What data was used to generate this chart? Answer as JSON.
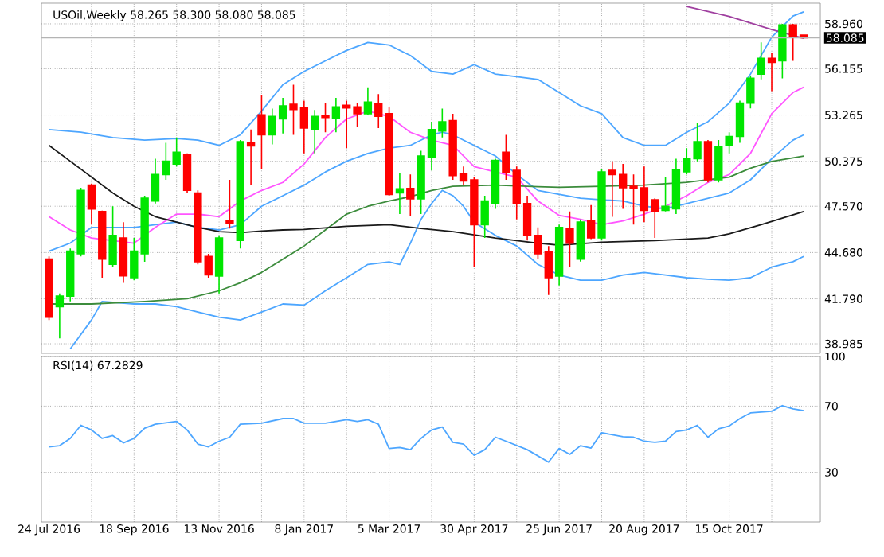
{
  "chart_data": [
    {
      "type": "candlestick",
      "title": "USOil,Weekly  58.265 58.300 58.080 58.085",
      "x": [
        "2016-07-24",
        "2016-07-31",
        "2016-08-07",
        "2016-08-14",
        "2016-08-21",
        "2016-08-28",
        "2016-09-04",
        "2016-09-11",
        "2016-09-18",
        "2016-09-25",
        "2016-10-02",
        "2016-10-09",
        "2016-10-16",
        "2016-10-23",
        "2016-10-30",
        "2016-11-06",
        "2016-11-13",
        "2016-11-20",
        "2016-11-27",
        "2016-12-04",
        "2016-12-11",
        "2016-12-18",
        "2016-12-25",
        "2017-01-01",
        "2017-01-08",
        "2017-01-15",
        "2017-01-22",
        "2017-01-29",
        "2017-02-05",
        "2017-02-12",
        "2017-02-19",
        "2017-02-26",
        "2017-03-05",
        "2017-03-12",
        "2017-03-19",
        "2017-03-26",
        "2017-04-02",
        "2017-04-09",
        "2017-04-16",
        "2017-04-23",
        "2017-04-30",
        "2017-05-07",
        "2017-05-14",
        "2017-05-21",
        "2017-05-28",
        "2017-06-04",
        "2017-06-11",
        "2017-06-18",
        "2017-06-25",
        "2017-07-02",
        "2017-07-09",
        "2017-07-16",
        "2017-07-23",
        "2017-07-30",
        "2017-08-06",
        "2017-08-13",
        "2017-08-20",
        "2017-08-27",
        "2017-09-03",
        "2017-09-10",
        "2017-09-17",
        "2017-09-24",
        "2017-10-01",
        "2017-10-08",
        "2017-10-15",
        "2017-10-22",
        "2017-10-29",
        "2017-11-05",
        "2017-11-12",
        "2017-11-19",
        "2017-11-26",
        "2017-12-03"
      ],
      "ohlc": [
        [
          44.27,
          44.44,
          40.47,
          40.64
        ],
        [
          41.3,
          42.13,
          39.32,
          41.96
        ],
        [
          41.96,
          44.93,
          41.63,
          44.77
        ],
        [
          44.6,
          48.72,
          44.44,
          48.56
        ],
        [
          48.89,
          48.99,
          46.42,
          47.4
        ],
        [
          47.24,
          47.3,
          43.11,
          44.27
        ],
        [
          43.94,
          47.57,
          43.77,
          45.75
        ],
        [
          45.59,
          46.58,
          42.79,
          43.22
        ],
        [
          43.11,
          45.59,
          42.95,
          44.77
        ],
        [
          44.6,
          48.23,
          44.1,
          48.07
        ],
        [
          47.9,
          50.54,
          47.74,
          49.55
        ],
        [
          49.55,
          51.53,
          49.22,
          50.38
        ],
        [
          50.21,
          51.86,
          50.05,
          50.94
        ],
        [
          50.8,
          50.87,
          48.4,
          48.56
        ],
        [
          48.4,
          48.56,
          43.94,
          44.1
        ],
        [
          44.44,
          44.6,
          43.11,
          43.28
        ],
        [
          43.21,
          45.75,
          42.13,
          45.59
        ],
        [
          46.65,
          49.22,
          46.18,
          46.51
        ],
        [
          45.43,
          51.7,
          44.93,
          51.6
        ],
        [
          51.53,
          52.36,
          48.89,
          51.33
        ],
        [
          53.28,
          54.5,
          49.88,
          52.03
        ],
        [
          52.03,
          53.67,
          51.43,
          53.18
        ],
        [
          53.02,
          54.34,
          52.12,
          53.84
        ],
        [
          53.94,
          55.16,
          52.03,
          53.61
        ],
        [
          53.74,
          54.17,
          50.87,
          52.45
        ],
        [
          52.36,
          53.58,
          50.87,
          53.18
        ],
        [
          53.25,
          54.0,
          52.19,
          53.11
        ],
        [
          53.08,
          54.34,
          52.19,
          53.77
        ],
        [
          53.87,
          54.17,
          51.2,
          53.71
        ],
        [
          53.77,
          54.0,
          52.52,
          53.35
        ],
        [
          53.35,
          55.0,
          53.25,
          54.07
        ],
        [
          53.97,
          54.57,
          52.45,
          53.18
        ],
        [
          53.35,
          53.77,
          48.23,
          48.3
        ],
        [
          48.4,
          49.62,
          47.08,
          48.66
        ],
        [
          48.69,
          49.55,
          46.98,
          48.03
        ],
        [
          48.03,
          51.03,
          47.08,
          50.71
        ],
        [
          50.64,
          52.85,
          49.81,
          52.36
        ],
        [
          52.26,
          53.67,
          51.86,
          52.85
        ],
        [
          52.92,
          53.35,
          49.22,
          49.48
        ],
        [
          49.62,
          50.05,
          48.89,
          49.15
        ],
        [
          49.22,
          49.39,
          43.77,
          46.42
        ],
        [
          46.42,
          48.23,
          45.59,
          47.9
        ],
        [
          47.74,
          50.54,
          47.41,
          50.44
        ],
        [
          50.94,
          52.03,
          49.22,
          49.71
        ],
        [
          49.81,
          50.05,
          46.75,
          47.74
        ],
        [
          47.74,
          48.23,
          45.43,
          45.75
        ],
        [
          45.75,
          46.25,
          44.27,
          44.6
        ],
        [
          44.73,
          45.09,
          42.03,
          43.11
        ],
        [
          43.21,
          46.42,
          42.62,
          46.25
        ],
        [
          46.18,
          47.24,
          43.77,
          45.26
        ],
        [
          44.27,
          46.75,
          44.11,
          46.58
        ],
        [
          46.65,
          47.64,
          45.52,
          45.59
        ],
        [
          45.59,
          49.88,
          45.43,
          49.72
        ],
        [
          49.81,
          50.37,
          46.91,
          49.55
        ],
        [
          49.55,
          50.21,
          47.41,
          48.72
        ],
        [
          48.82,
          49.55,
          46.42,
          48.69
        ],
        [
          48.72,
          50.05,
          46.58,
          47.31
        ],
        [
          47.97,
          48.07,
          45.59,
          47.24
        ],
        [
          47.31,
          49.39,
          47.24,
          47.57
        ],
        [
          47.41,
          50.54,
          47.08,
          49.88
        ],
        [
          49.72,
          51.2,
          49.55,
          50.54
        ],
        [
          50.54,
          52.78,
          50.37,
          51.6
        ],
        [
          51.6,
          51.7,
          49.06,
          49.22
        ],
        [
          49.22,
          51.7,
          49.06,
          51.27
        ],
        [
          51.37,
          52.19,
          50.87,
          51.93
        ],
        [
          51.93,
          54.17,
          51.53,
          54.01
        ],
        [
          54.01,
          55.72,
          53.68,
          55.56
        ],
        [
          55.82,
          57.8,
          55.49,
          56.81
        ],
        [
          56.81,
          57.14,
          54.76,
          56.55
        ],
        [
          56.65,
          58.96,
          55.56,
          58.89
        ],
        [
          58.89,
          58.96,
          56.65,
          58.2
        ],
        [
          58.265,
          58.3,
          58.08,
          58.085
        ]
      ],
      "colors": [
        "#ff0000",
        "#00e600",
        "#00e600",
        "#00e600",
        "#ff0000",
        "#ff0000",
        "#00e600",
        "#ff0000",
        "#00e600",
        "#00e600",
        "#00e600",
        "#00e600",
        "#00e600",
        "#ff0000",
        "#ff0000",
        "#ff0000",
        "#00e600",
        "#ff0000",
        "#00e600",
        "#ff0000",
        "#ff0000",
        "#00e600",
        "#00e600",
        "#ff0000",
        "#ff0000",
        "#00e600",
        "#ff0000",
        "#00e600",
        "#ff0000",
        "#ff0000",
        "#00e600",
        "#ff0000",
        "#ff0000",
        "#00e600",
        "#ff0000",
        "#00e600",
        "#00e600",
        "#00e600",
        "#ff0000",
        "#ff0000",
        "#ff0000",
        "#00e600",
        "#00e600",
        "#ff0000",
        "#ff0000",
        "#ff0000",
        "#ff0000",
        "#ff0000",
        "#00e600",
        "#ff0000",
        "#00e600",
        "#ff0000",
        "#00e600",
        "#ff0000",
        "#ff0000",
        "#ff0000",
        "#ff0000",
        "#ff0000",
        "#00e600",
        "#00e600",
        "#00e600",
        "#00e600",
        "#ff0000",
        "#00e600",
        "#00e600",
        "#00e600",
        "#00e600",
        "#00e600",
        "#ff0000",
        "#00e600",
        "#ff0000",
        "#ff0000"
      ],
      "series": [
        {
          "type": "line",
          "color": "#4da6ff",
          "x": [
            "2016-07-24",
            "2016-08-14",
            "2016-09-04",
            "2016-09-25",
            "2016-10-16",
            "2016-10-30",
            "2016-11-13",
            "2016-11-27",
            "2016-12-11",
            "2016-12-25",
            "2017-01-08",
            "2017-01-22",
            "2017-02-05",
            "2017-02-19",
            "2017-03-05",
            "2017-03-19",
            "2017-04-02",
            "2017-04-16",
            "2017-04-30",
            "2017-05-14",
            "2017-05-28",
            "2017-06-11",
            "2017-06-25",
            "2017-07-09",
            "2017-07-23",
            "2017-08-06",
            "2017-08-20",
            "2017-09-03",
            "2017-09-17",
            "2017-10-01",
            "2017-10-15",
            "2017-10-29",
            "2017-11-12",
            "2017-11-26",
            "2017-12-03"
          ],
          "values": [
            52.36,
            52.19,
            51.86,
            51.7,
            51.8,
            51.7,
            51.37,
            52.03,
            53.51,
            55.16,
            55.99,
            56.65,
            57.3,
            57.8,
            57.64,
            56.98,
            55.99,
            55.82,
            56.41,
            55.82,
            55.66,
            55.49,
            54.67,
            53.84,
            53.35,
            51.86,
            51.37,
            51.37,
            52.19,
            52.85,
            54.01,
            55.82,
            58.13,
            59.45,
            59.71
          ]
        },
        {
          "type": "line",
          "color": "#4da6ff",
          "x": [
            "2016-07-24",
            "2016-08-07",
            "2016-08-21",
            "2016-09-04",
            "2016-09-18",
            "2016-10-02",
            "2016-10-16",
            "2016-10-30",
            "2016-11-13",
            "2016-11-27",
            "2016-12-11",
            "2016-12-25",
            "2017-01-08",
            "2017-01-22",
            "2017-02-05",
            "2017-02-19",
            "2017-03-05",
            "2017-03-19",
            "2017-04-02",
            "2017-04-09",
            "2017-04-16",
            "2017-04-30",
            "2017-05-14",
            "2017-05-28",
            "2017-06-11",
            "2017-07-09",
            "2017-07-23",
            "2017-08-06",
            "2017-08-20",
            "2017-09-03",
            "2017-09-17",
            "2017-10-01",
            "2017-10-15",
            "2017-10-29",
            "2017-11-12",
            "2017-11-26",
            "2017-12-03"
          ],
          "values": [
            44.77,
            45.27,
            46.25,
            46.25,
            46.25,
            46.42,
            46.58,
            46.25,
            46.09,
            46.42,
            47.57,
            48.23,
            48.89,
            49.71,
            50.38,
            50.87,
            51.2,
            51.37,
            52.03,
            52.19,
            52.03,
            51.37,
            50.71,
            49.55,
            48.56,
            48.07,
            47.97,
            47.9,
            47.57,
            47.41,
            47.74,
            48.07,
            48.4,
            49.22,
            50.54,
            51.7,
            52.03
          ]
        },
        {
          "type": "line",
          "color": "#4da6ff",
          "x": [
            "2016-08-07",
            "2016-08-21",
            "2016-08-28",
            "2016-09-18",
            "2016-10-02",
            "2016-10-16",
            "2016-10-30",
            "2016-11-13",
            "2016-11-27",
            "2016-12-11",
            "2016-12-25",
            "2017-01-08",
            "2017-01-22",
            "2017-02-05",
            "2017-02-19",
            "2017-03-05",
            "2017-03-12",
            "2017-03-19",
            "2017-03-26",
            "2017-04-02",
            "2017-04-09",
            "2017-04-16",
            "2017-04-23",
            "2017-04-30",
            "2017-05-14",
            "2017-05-28",
            "2017-06-11",
            "2017-06-25",
            "2017-07-09",
            "2017-07-23",
            "2017-08-06",
            "2017-08-20",
            "2017-09-03",
            "2017-09-17",
            "2017-10-01",
            "2017-10-15",
            "2017-10-29",
            "2017-11-12",
            "2017-11-26",
            "2017-12-03"
          ],
          "values": [
            38.66,
            40.47,
            41.63,
            41.47,
            41.47,
            41.3,
            40.97,
            40.64,
            40.47,
            40.97,
            41.47,
            41.4,
            42.29,
            43.11,
            43.94,
            44.1,
            43.94,
            45.27,
            46.75,
            47.74,
            48.56,
            48.23,
            47.57,
            46.58,
            45.75,
            45.09,
            43.94,
            43.28,
            42.95,
            42.95,
            43.28,
            43.44,
            43.28,
            43.11,
            43.02,
            42.95,
            43.11,
            43.77,
            44.11,
            44.44
          ]
        },
        {
          "type": "line",
          "color": "#ff55ff",
          "x": [
            "2016-07-24",
            "2016-08-07",
            "2016-08-21",
            "2016-09-04",
            "2016-09-18",
            "2016-10-02",
            "2016-10-16",
            "2016-10-30",
            "2016-11-13",
            "2016-11-27",
            "2016-12-11",
            "2016-12-25",
            "2017-01-08",
            "2017-01-22",
            "2017-02-05",
            "2017-02-19",
            "2017-03-05",
            "2017-03-19",
            "2017-04-02",
            "2017-04-16",
            "2017-04-30",
            "2017-05-14",
            "2017-05-28",
            "2017-06-11",
            "2017-06-25",
            "2017-07-09",
            "2017-07-23",
            "2017-08-06",
            "2017-08-20",
            "2017-09-03",
            "2017-09-17",
            "2017-10-01",
            "2017-10-15",
            "2017-10-29",
            "2017-11-12",
            "2017-11-26",
            "2017-12-03"
          ],
          "values": [
            46.92,
            46.09,
            45.59,
            45.43,
            45.27,
            46.25,
            47.08,
            47.08,
            46.92,
            47.9,
            48.56,
            49.06,
            50.21,
            51.86,
            53.02,
            53.51,
            53.18,
            52.19,
            51.7,
            51.37,
            50.05,
            49.71,
            49.39,
            47.9,
            47.0,
            46.75,
            46.42,
            46.65,
            47.08,
            47.57,
            48.23,
            49.06,
            49.55,
            50.87,
            53.35,
            54.67,
            55.0
          ]
        },
        {
          "type": "line",
          "color": "#3c8c3c",
          "x": [
            "2016-07-24",
            "2016-08-21",
            "2016-09-25",
            "2016-10-23",
            "2016-11-13",
            "2016-11-27",
            "2016-12-11",
            "2016-12-25",
            "2017-01-08",
            "2017-01-22",
            "2017-02-05",
            "2017-02-19",
            "2017-03-05",
            "2017-03-19",
            "2017-04-02",
            "2017-04-16",
            "2017-05-14",
            "2017-06-11",
            "2017-06-25",
            "2017-07-23",
            "2017-08-20",
            "2017-09-17",
            "2017-10-15",
            "2017-10-29",
            "2017-11-12",
            "2017-12-03"
          ],
          "values": [
            41.47,
            41.47,
            41.63,
            41.8,
            42.29,
            42.79,
            43.44,
            44.27,
            45.09,
            46.09,
            47.08,
            47.57,
            47.9,
            48.17,
            48.56,
            48.82,
            48.89,
            48.79,
            48.75,
            48.82,
            48.89,
            49.06,
            49.39,
            49.95,
            50.37,
            50.7
          ]
        },
        {
          "type": "line",
          "color": "#1a1a1a",
          "x": [
            "2016-07-24",
            "2016-08-07",
            "2016-08-21",
            "2016-09-04",
            "2016-09-18",
            "2016-10-02",
            "2016-10-16",
            "2016-10-30",
            "2016-11-13",
            "2016-11-27",
            "2016-12-11",
            "2016-12-25",
            "2017-01-08",
            "2017-02-05",
            "2017-03-05",
            "2017-03-26",
            "2017-04-16",
            "2017-05-14",
            "2017-06-11",
            "2017-06-25",
            "2017-07-23",
            "2017-08-27",
            "2017-10-01",
            "2017-10-15",
            "2017-11-05",
            "2017-12-03"
          ],
          "values": [
            51.37,
            50.38,
            49.39,
            48.4,
            47.57,
            46.92,
            46.58,
            46.25,
            45.99,
            45.92,
            46.02,
            46.09,
            46.12,
            46.32,
            46.42,
            46.18,
            45.99,
            45.59,
            45.27,
            45.14,
            45.33,
            45.43,
            45.59,
            45.85,
            46.42,
            47.24
          ]
        },
        {
          "type": "line",
          "color": "#a040a0",
          "x": [
            "2017-09-17",
            "2017-10-15",
            "2017-11-12",
            "2017-12-03"
          ],
          "values": [
            60.04,
            59.42,
            58.6,
            58.06
          ]
        }
      ],
      "xlim": [
        "2016-07-19",
        "2017-12-14"
      ],
      "ylim": [
        38.39,
        60.25
      ],
      "xticks": [
        {
          "value": "2016-07-24",
          "label": null
        },
        {
          "value": "2016-08-21",
          "label": null
        },
        {
          "value": "2016-09-18",
          "label": null
        },
        {
          "value": "2016-10-16",
          "label": null
        },
        {
          "value": "2016-11-13",
          "label": null
        },
        {
          "value": "2016-12-11",
          "label": null
        },
        {
          "value": "2017-01-08",
          "label": null
        },
        {
          "value": "2017-02-05",
          "label": null
        },
        {
          "value": "2017-03-05",
          "label": null
        },
        {
          "value": "2017-04-02",
          "label": null
        },
        {
          "value": "2017-04-30",
          "label": null
        },
        {
          "value": "2017-05-28",
          "label": null
        },
        {
          "value": "2017-06-25",
          "label": null
        },
        {
          "value": "2017-07-23",
          "label": null
        },
        {
          "value": "2017-08-20",
          "label": null
        },
        {
          "value": "2017-09-17",
          "label": null
        },
        {
          "value": "2017-10-15",
          "label": null
        },
        {
          "value": "2017-11-12",
          "label": null
        }
      ],
      "yticks": [
        38.985,
        {
          "value": 41.79,
          "label": "41.790"
        },
        {
          "value": 44.68,
          "label": "44.680"
        },
        {
          "value": 47.57,
          "label": "47.570"
        },
        50.375,
        53.265,
        56.155,
        {
          "value": 58.96,
          "label": "58.960"
        }
      ],
      "grid": true,
      "tick_labels": "y",
      "ref_lines": [
        {
          "axis": "y",
          "value": 58.085,
          "label": "58.085",
          "color": "#b4b4b4"
        }
      ]
    },
    {
      "type": "line",
      "title": "RSI(14) 67.2829",
      "color": "#4da6ff",
      "x": [
        "2016-07-24",
        "2016-07-31",
        "2016-08-07",
        "2016-08-14",
        "2016-08-21",
        "2016-08-28",
        "2016-09-04",
        "2016-09-11",
        "2016-09-18",
        "2016-09-25",
        "2016-10-02",
        "2016-10-16",
        "2016-10-23",
        "2016-10-30",
        "2016-11-06",
        "2016-11-13",
        "2016-11-20",
        "2016-11-27",
        "2016-12-11",
        "2016-12-25",
        "2017-01-01",
        "2017-01-08",
        "2017-01-22",
        "2017-02-05",
        "2017-02-12",
        "2017-02-19",
        "2017-02-26",
        "2017-03-05",
        "2017-03-12",
        "2017-03-19",
        "2017-03-26",
        "2017-04-02",
        "2017-04-09",
        "2017-04-16",
        "2017-04-23",
        "2017-04-30",
        "2017-05-07",
        "2017-05-14",
        "2017-05-21",
        "2017-06-04",
        "2017-06-18",
        "2017-06-25",
        "2017-07-02",
        "2017-07-09",
        "2017-07-16",
        "2017-07-23",
        "2017-08-06",
        "2017-08-13",
        "2017-08-20",
        "2017-08-27",
        "2017-09-03",
        "2017-09-10",
        "2017-09-17",
        "2017-09-24",
        "2017-10-01",
        "2017-10-08",
        "2017-10-15",
        "2017-10-22",
        "2017-10-29",
        "2017-11-12",
        "2017-11-19",
        "2017-11-26",
        "2017-12-03"
      ],
      "values": [
        45.4,
        46.1,
        50.5,
        58.4,
        55.6,
        50.5,
        52.2,
        47.8,
        50.5,
        56.7,
        59.1,
        60.8,
        55.6,
        47.1,
        45.4,
        48.8,
        51.2,
        59.1,
        59.7,
        62.5,
        62.5,
        59.7,
        59.7,
        61.8,
        60.8,
        61.8,
        59.1,
        44.4,
        45.0,
        43.7,
        50.5,
        55.6,
        57.4,
        48.1,
        47.1,
        40.3,
        43.7,
        51.2,
        48.8,
        43.7,
        36.2,
        44.4,
        40.9,
        46.1,
        44.7,
        53.9,
        51.5,
        51.2,
        48.8,
        48.1,
        48.8,
        54.6,
        55.6,
        58.4,
        51.2,
        56.3,
        58.0,
        62.5,
        65.9,
        66.9,
        70.3,
        68.3,
        67.2829
      ],
      "xlim": [
        "2016-07-19",
        "2017-12-14"
      ],
      "ylim": [
        0,
        100
      ],
      "xticks": [
        {
          "value": "2016-07-24",
          "label": "24 Jul 2016"
        },
        {
          "value": "2016-08-21",
          "label": null
        },
        {
          "value": "2016-09-18",
          "label": "18 Sep 2016"
        },
        {
          "value": "2016-10-16",
          "label": null
        },
        {
          "value": "2016-11-13",
          "label": "13 Nov 2016"
        },
        {
          "value": "2016-12-11",
          "label": null
        },
        {
          "value": "2017-01-08",
          "label": "8 Jan 2017"
        },
        {
          "value": "2017-02-05",
          "label": null
        },
        {
          "value": "2017-03-05",
          "label": "5 Mar 2017"
        },
        {
          "value": "2017-04-02",
          "label": null
        },
        {
          "value": "2017-04-30",
          "label": "30 Apr 2017"
        },
        {
          "value": "2017-05-28",
          "label": null
        },
        {
          "value": "2017-06-25",
          "label": "25 Jun 2017"
        },
        {
          "value": "2017-07-23",
          "label": null
        },
        {
          "value": "2017-08-20",
          "label": "20 Aug 2017"
        },
        {
          "value": "2017-09-17",
          "label": null
        },
        {
          "value": "2017-10-15",
          "label": "15 Oct 2017"
        },
        {
          "value": "2017-11-12",
          "label": null
        }
      ],
      "yticks": [
        30,
        70,
        100
      ],
      "grid": true
    }
  ]
}
